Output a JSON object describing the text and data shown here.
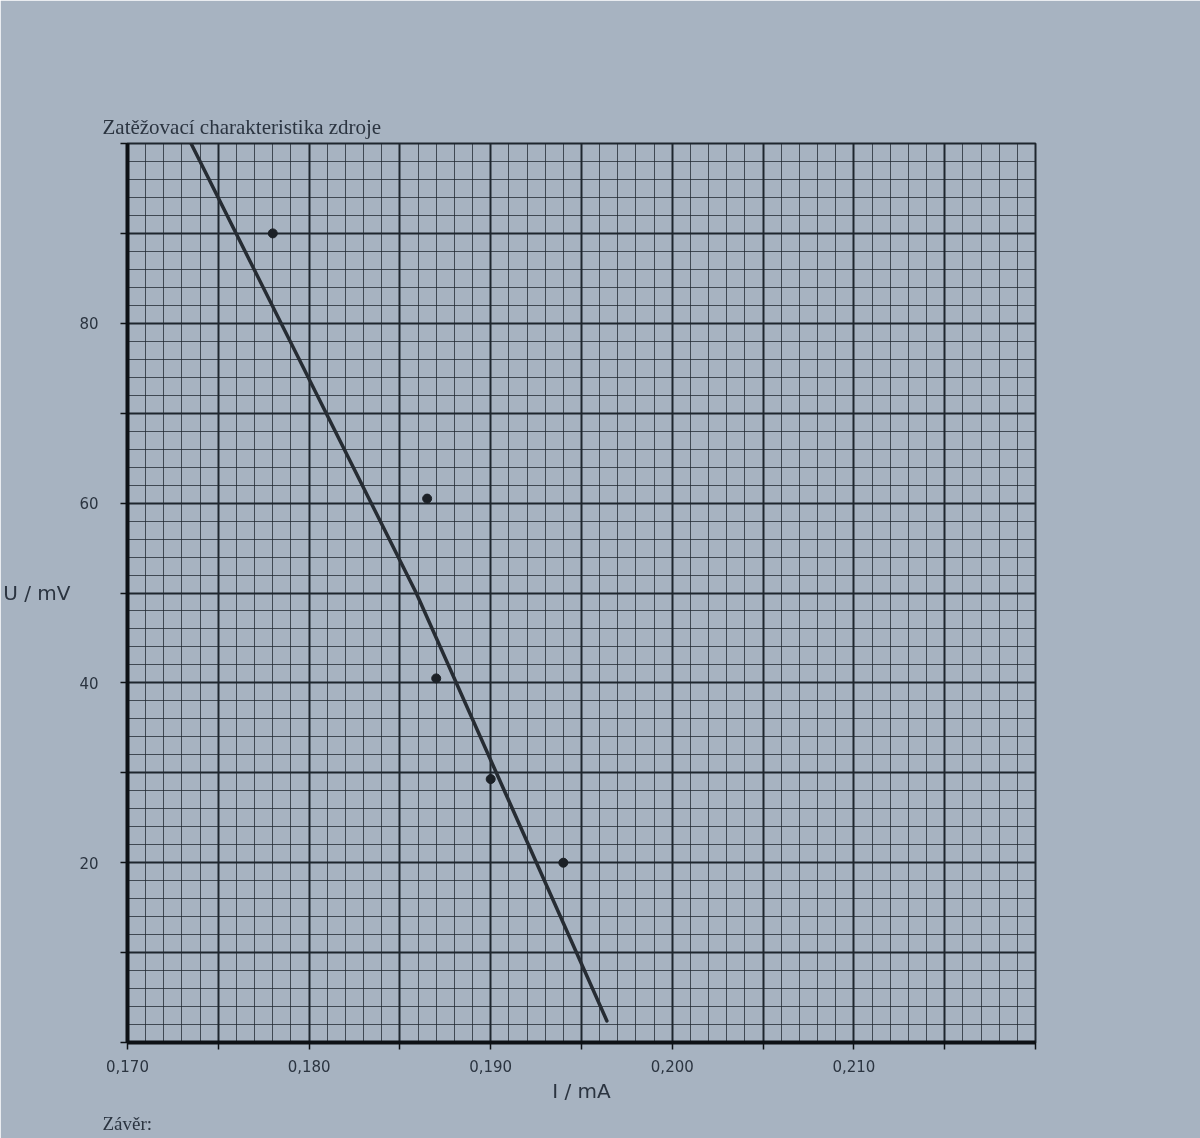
{
  "chart_data": {
    "type": "scatter",
    "title": "Zatěžovací charakteristika zdroje",
    "xlabel": "I / mA",
    "ylabel": "U / mV",
    "annotations": [
      "Závěr:"
    ],
    "xlim": [
      0.17,
      0.22
    ],
    "ylim": [
      0,
      100
    ],
    "xticks": [
      {
        "value": 0.17,
        "label": "0,170"
      },
      {
        "value": 0.175,
        "label": null
      },
      {
        "value": 0.18,
        "label": "0,180"
      },
      {
        "value": 0.185,
        "label": null
      },
      {
        "value": 0.19,
        "label": "0,190"
      },
      {
        "value": 0.195,
        "label": null
      },
      {
        "value": 0.2,
        "label": "0,200"
      },
      {
        "value": 0.205,
        "label": null
      },
      {
        "value": 0.21,
        "label": "0,210"
      },
      {
        "value": 0.215,
        "label": null
      },
      {
        "value": 0.22,
        "label": null
      }
    ],
    "yticks": [
      {
        "value": 0,
        "label": null
      },
      {
        "value": 10,
        "label": null
      },
      20,
      {
        "value": 30,
        "label": null
      },
      40,
      {
        "value": 50,
        "label": null
      },
      60,
      {
        "value": 70,
        "label": null
      },
      80,
      {
        "value": 90,
        "label": null
      },
      {
        "value": 100,
        "label": null
      }
    ],
    "grid": true,
    "series": [
      {
        "color": "#1b2026",
        "marker": "circle",
        "x": [
          0.178,
          0.1865,
          0.187,
          0.19,
          0.194
        ],
        "values": [
          90,
          60.5,
          40.5,
          29.3,
          20
        ]
      },
      {
        "type": "line",
        "color": "#262c33",
        "line_style": "solid",
        "x": [
          0.1735,
          0.1859,
          0.1964
        ],
        "values": [
          100,
          50,
          2.4
        ]
      }
    ]
  }
}
